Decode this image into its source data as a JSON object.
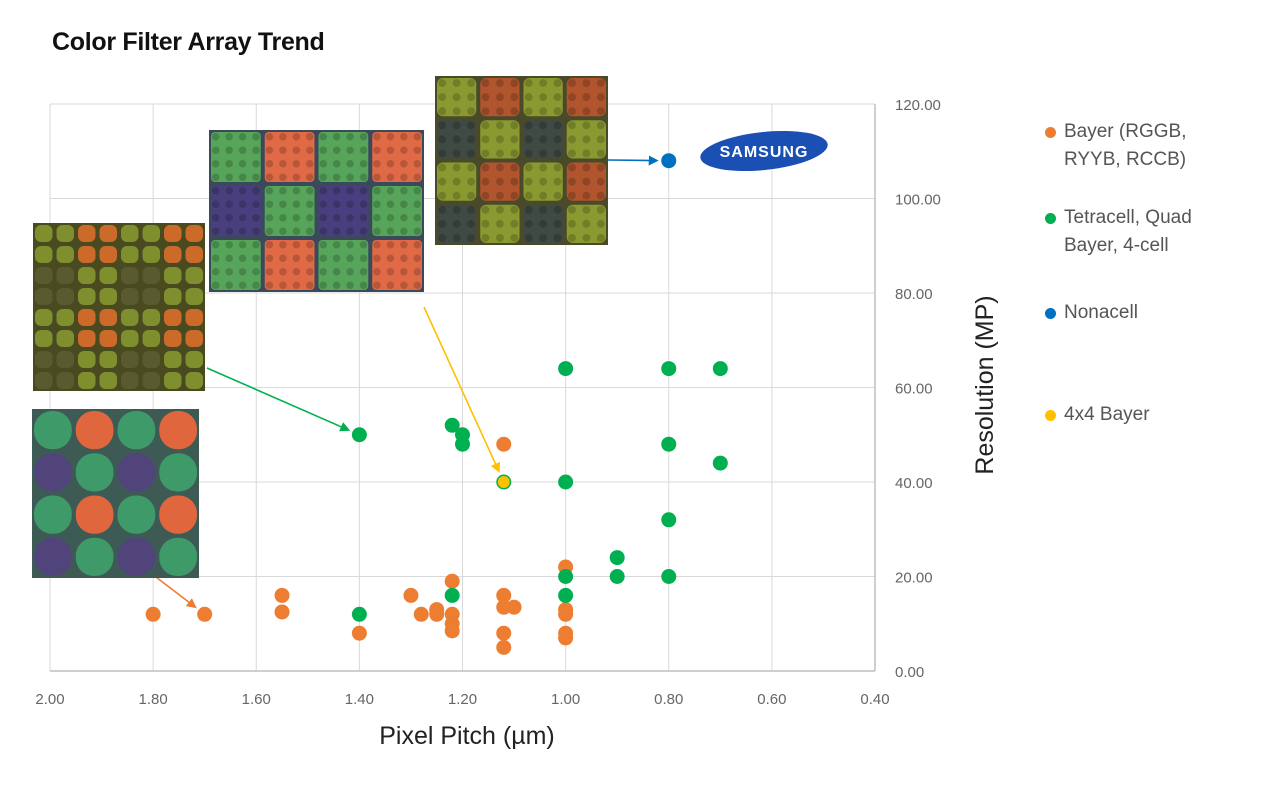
{
  "chart_data": {
    "type": "scatter",
    "title": "Color Filter Array Trend",
    "xlabel": "Pixel Pitch (µm)",
    "ylabel": "Resolution (MP)",
    "xlim": [
      2.0,
      0.4
    ],
    "x_reversed": true,
    "ylim": [
      0,
      120
    ],
    "x_ticks": [
      "2.00",
      "1.80",
      "1.60",
      "1.40",
      "1.20",
      "1.00",
      "0.80",
      "0.60",
      "0.40"
    ],
    "x_tick_values": [
      2.0,
      1.8,
      1.6,
      1.4,
      1.2,
      1.0,
      0.8,
      0.6,
      0.4
    ],
    "y_ticks": [
      "0.00",
      "20.00",
      "40.00",
      "60.00",
      "80.00",
      "100.00",
      "120.00"
    ],
    "y_tick_values": [
      0,
      20,
      40,
      60,
      80,
      100,
      120
    ],
    "y_axis_side": "right",
    "grid": true,
    "legend_position": "right",
    "series": [
      {
        "name": "Bayer (RGGB, RYYB, RCCB)",
        "legend_lines": [
          "Bayer (RGGB,",
          "RYYB, RCCB)"
        ],
        "color": "#ED7D31",
        "points": [
          [
            1.8,
            12
          ],
          [
            1.7,
            12
          ],
          [
            1.55,
            16
          ],
          [
            1.55,
            12.5
          ],
          [
            1.4,
            8
          ],
          [
            1.3,
            16
          ],
          [
            1.28,
            12
          ],
          [
            1.25,
            13
          ],
          [
            1.25,
            12
          ],
          [
            1.22,
            19
          ],
          [
            1.22,
            12
          ],
          [
            1.22,
            10
          ],
          [
            1.22,
            8.5
          ],
          [
            1.12,
            48
          ],
          [
            1.12,
            16
          ],
          [
            1.12,
            13.5
          ],
          [
            1.1,
            13.5
          ],
          [
            1.12,
            8
          ],
          [
            1.12,
            5
          ],
          [
            1.0,
            22
          ],
          [
            1.0,
            13
          ],
          [
            1.0,
            12
          ],
          [
            1.0,
            8
          ],
          [
            1.0,
            7
          ]
        ]
      },
      {
        "name": "Tetracell, Quad Bayer, 4-cell",
        "legend_lines": [
          "Tetracell, Quad",
          "Bayer, 4-cell"
        ],
        "color": "#00B050",
        "points": [
          [
            1.4,
            50
          ],
          [
            1.4,
            12
          ],
          [
            1.22,
            52
          ],
          [
            1.2,
            50
          ],
          [
            1.2,
            48
          ],
          [
            1.12,
            40
          ],
          [
            1.22,
            16
          ],
          [
            1.0,
            64
          ],
          [
            1.0,
            40
          ],
          [
            1.0,
            20
          ],
          [
            1.0,
            16
          ],
          [
            0.9,
            24
          ],
          [
            0.9,
            20
          ],
          [
            0.8,
            64
          ],
          [
            0.8,
            48
          ],
          [
            0.8,
            32
          ],
          [
            0.8,
            20
          ],
          [
            0.7,
            64
          ],
          [
            0.7,
            44
          ]
        ]
      },
      {
        "name": "Nonacell",
        "legend_lines": [
          "Nonacell"
        ],
        "color": "#0070C0",
        "points": [
          [
            0.8,
            108
          ]
        ]
      },
      {
        "name": "4x4 Bayer",
        "legend_lines": [
          "4x4 Bayer"
        ],
        "color": "#FFC000",
        "points": [
          [
            1.12,
            40
          ]
        ]
      }
    ],
    "annotations": [
      {
        "type": "inset-image",
        "name": "bayer-pattern-image",
        "pattern": "bayer-2x2",
        "arrow_to": [
          1.7,
          12
        ],
        "arrow_color": "#ED7D31"
      },
      {
        "type": "inset-image",
        "name": "tetracell-pattern-image",
        "pattern": "tetracell",
        "arrow_to": [
          1.4,
          50
        ],
        "arrow_color": "#00B050"
      },
      {
        "type": "inset-image",
        "name": "4x4-bayer-pattern-image",
        "pattern": "4x4-bayer",
        "arrow_to": [
          1.12,
          40
        ],
        "arrow_color": "#FFC000"
      },
      {
        "type": "inset-image",
        "name": "nonacell-pattern-image",
        "pattern": "nonacell",
        "arrow_to": [
          0.8,
          108
        ],
        "arrow_color": "#0070C0"
      },
      {
        "type": "logo",
        "name": "samsung-logo",
        "text": "SAMSUNG",
        "color": "#1428A0"
      }
    ]
  }
}
